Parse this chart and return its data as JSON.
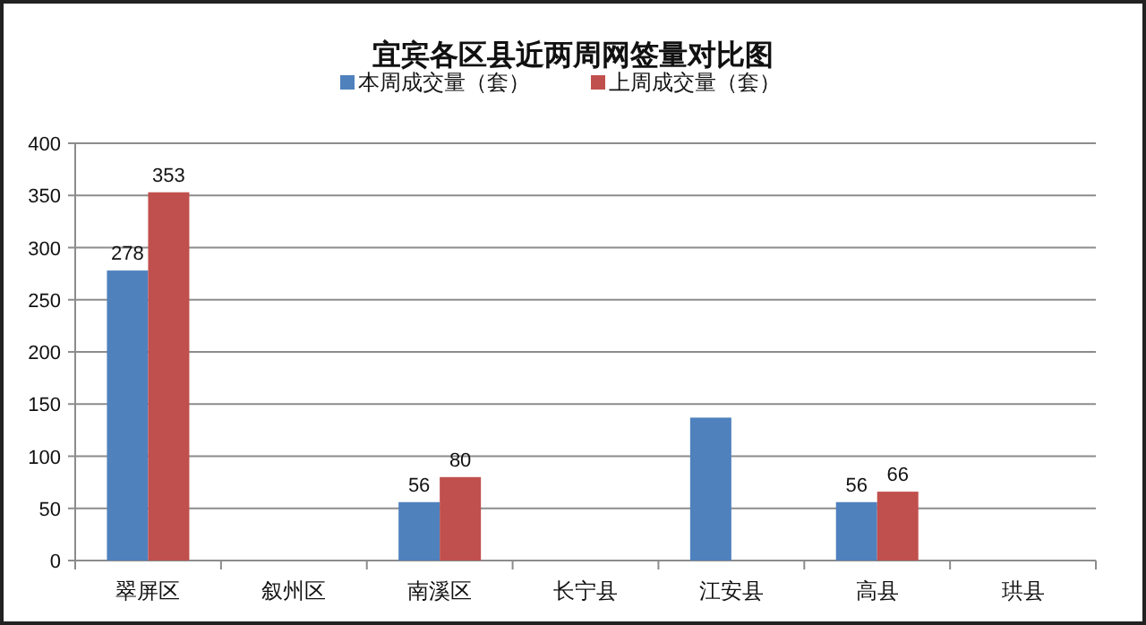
{
  "chart_data": {
    "type": "bar",
    "title": "宜宾各区县近两周网签量对比图",
    "categories": [
      "翠屏区",
      "叙州区",
      "南溪区",
      "长宁县",
      "江安县",
      "高县",
      "珙县"
    ],
    "series": [
      {
        "name": "本周成交量（套）",
        "color": "#4f81bd",
        "values": [
          278,
          null,
          56,
          null,
          137,
          56,
          null
        ],
        "value_labels": [
          "278",
          null,
          "56",
          null,
          null,
          "56",
          null
        ]
      },
      {
        "name": "上周成交量（套）",
        "color": "#c0504d",
        "values": [
          353,
          null,
          80,
          null,
          null,
          66,
          null
        ],
        "value_labels": [
          "353",
          null,
          "80",
          null,
          null,
          "66",
          null
        ]
      }
    ],
    "ylim": [
      0,
      400
    ],
    "yticks": [
      0,
      50,
      100,
      150,
      200,
      250,
      300,
      350,
      400
    ],
    "grid": "y",
    "legend": "top"
  }
}
